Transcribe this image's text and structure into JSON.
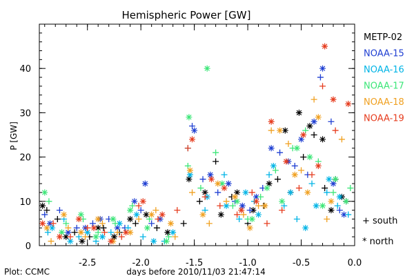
{
  "footer": {
    "credit": "Plot: CCMC"
  },
  "legend": {
    "items": [
      {
        "name": "METP-02",
        "color": "#000000"
      },
      {
        "name": "NOAA-15",
        "color": "#1f3fd2"
      },
      {
        "name": "NOAA-16",
        "color": "#00b4e6"
      },
      {
        "name": "NOAA-17",
        "color": "#3ce678"
      },
      {
        "name": "NOAA-18",
        "color": "#f0a020"
      },
      {
        "name": "NOAA-19",
        "color": "#e63c1e"
      }
    ],
    "markers": [
      {
        "symbol": "+",
        "label": "south"
      },
      {
        "symbol": "*",
        "label": "north"
      }
    ]
  },
  "chart_data": {
    "type": "scatter",
    "title": "Hemispheric Power [GW]",
    "xlabel": "days before 2010/11/03 21:47:14",
    "ylabel": "P [GW]",
    "xlim": [
      -2.95,
      0.0
    ],
    "ylim": [
      0,
      50
    ],
    "xticks": [
      -2.5,
      -2.0,
      -1.5,
      -1.0,
      -0.5,
      0.0
    ],
    "xtick_labels": [
      "-2.5",
      "-2.0",
      "-1.5",
      "-1.0",
      "-0.5",
      "0.0"
    ],
    "yticks": [
      0,
      10,
      20,
      30,
      40
    ],
    "ytick_labels": [
      "0",
      "10",
      "20",
      "30",
      "40"
    ],
    "series": [
      {
        "name": "METP-02",
        "color": "#000000",
        "south": [
          [
            -2.88,
            8
          ],
          [
            -2.78,
            6
          ],
          [
            -2.62,
            3
          ],
          [
            -2.48,
            2
          ],
          [
            -2.35,
            4
          ],
          [
            -2.2,
            3
          ],
          [
            -2.05,
            5
          ],
          [
            -1.85,
            4
          ],
          [
            -1.6,
            5
          ],
          [
            -1.45,
            10
          ],
          [
            -1.3,
            19
          ],
          [
            -1.15,
            11
          ],
          [
            -1.0,
            5
          ],
          [
            -0.85,
            9
          ],
          [
            -0.72,
            15
          ],
          [
            -0.6,
            12
          ],
          [
            -0.48,
            20
          ],
          [
            -0.38,
            25
          ],
          [
            -0.28,
            13
          ],
          [
            -0.18,
            15
          ],
          [
            -0.08,
            10
          ]
        ],
        "north": [
          [
            -2.92,
            9
          ],
          [
            -2.7,
            2
          ],
          [
            -2.55,
            1
          ],
          [
            -2.4,
            4
          ],
          [
            -2.25,
            2
          ],
          [
            -2.1,
            6
          ],
          [
            -1.95,
            7
          ],
          [
            -1.75,
            3
          ],
          [
            -1.55,
            15
          ],
          [
            -1.4,
            12
          ],
          [
            -1.25,
            7
          ],
          [
            -1.1,
            12
          ],
          [
            -0.95,
            8
          ],
          [
            -0.8,
            14
          ],
          [
            -0.65,
            26
          ],
          [
            -0.52,
            30
          ],
          [
            -0.42,
            27
          ],
          [
            -0.3,
            24
          ],
          [
            -0.22,
            8
          ],
          [
            -0.12,
            11
          ]
        ]
      },
      {
        "name": "NOAA-15",
        "color": "#1f3fd2",
        "south": [
          [
            -2.9,
            7
          ],
          [
            -2.76,
            8
          ],
          [
            -2.6,
            4
          ],
          [
            -2.45,
            5
          ],
          [
            -2.3,
            6
          ],
          [
            -2.15,
            4
          ],
          [
            -2.0,
            8
          ],
          [
            -1.9,
            5
          ],
          [
            -1.52,
            27
          ],
          [
            -1.42,
            15
          ],
          [
            -1.28,
            12
          ],
          [
            -1.12,
            10
          ],
          [
            -0.98,
            8
          ],
          [
            -0.86,
            13
          ],
          [
            -0.7,
            21
          ],
          [
            -0.56,
            18
          ],
          [
            -0.44,
            16
          ],
          [
            -0.32,
            38
          ],
          [
            -0.22,
            28
          ],
          [
            -0.14,
            8
          ]
        ],
        "north": [
          [
            -2.85,
            5
          ],
          [
            -2.68,
            3
          ],
          [
            -2.52,
            4
          ],
          [
            -2.38,
            6
          ],
          [
            -2.22,
            4
          ],
          [
            -2.06,
            10
          ],
          [
            -1.96,
            14
          ],
          [
            -1.82,
            6
          ],
          [
            -1.5,
            26
          ],
          [
            -1.35,
            16
          ],
          [
            -1.18,
            14
          ],
          [
            -1.05,
            9
          ],
          [
            -0.92,
            11
          ],
          [
            -0.78,
            22
          ],
          [
            -0.62,
            19
          ],
          [
            -0.5,
            24
          ],
          [
            -0.38,
            28
          ],
          [
            -0.3,
            40
          ],
          [
            -0.2,
            14
          ],
          [
            -0.1,
            7
          ]
        ]
      },
      {
        "name": "NOAA-16",
        "color": "#00b4e6",
        "south": [
          [
            -2.87,
            3
          ],
          [
            -2.72,
            6
          ],
          [
            -2.58,
            2
          ],
          [
            -2.42,
            1
          ],
          [
            -2.28,
            3
          ],
          [
            -2.12,
            4
          ],
          [
            -1.98,
            2
          ],
          [
            -1.78,
            1
          ],
          [
            -1.56,
            22
          ],
          [
            -1.4,
            8
          ],
          [
            -1.22,
            16
          ],
          [
            -1.08,
            6
          ],
          [
            -0.94,
            10
          ],
          [
            -0.8,
            16
          ],
          [
            -0.66,
            9
          ],
          [
            -0.54,
            6
          ],
          [
            -0.4,
            14
          ],
          [
            -0.26,
            12
          ],
          [
            -0.16,
            9
          ],
          [
            -0.06,
            7
          ]
        ],
        "north": [
          [
            -2.83,
            4
          ],
          [
            -2.66,
            1
          ],
          [
            -2.5,
            3
          ],
          [
            -2.36,
            2
          ],
          [
            -2.2,
            5
          ],
          [
            -2.04,
            7
          ],
          [
            -1.88,
            1
          ],
          [
            -1.7,
            3
          ],
          [
            -1.54,
            16
          ],
          [
            -1.38,
            11
          ],
          [
            -1.2,
            9
          ],
          [
            -1.02,
            12
          ],
          [
            -0.9,
            7
          ],
          [
            -0.76,
            18
          ],
          [
            -0.6,
            12
          ],
          [
            -0.46,
            4
          ],
          [
            -0.36,
            9
          ],
          [
            -0.24,
            15
          ],
          [
            -0.14,
            11
          ]
        ]
      },
      {
        "name": "NOAA-17",
        "color": "#3ce678",
        "south": [
          [
            -2.86,
            10
          ],
          [
            -2.7,
            5
          ],
          [
            -2.54,
            6
          ],
          [
            -2.4,
            3
          ],
          [
            -2.24,
            5
          ],
          [
            -2.08,
            9
          ],
          [
            -1.92,
            6
          ],
          [
            -1.74,
            2
          ],
          [
            -1.56,
            18
          ],
          [
            -1.44,
            13
          ],
          [
            -1.3,
            21
          ],
          [
            -1.14,
            9
          ],
          [
            -1.0,
            6
          ],
          [
            -0.88,
            11
          ],
          [
            -0.74,
            17
          ],
          [
            -0.58,
            22
          ],
          [
            -0.46,
            26
          ],
          [
            -0.34,
            19
          ],
          [
            -0.2,
            12
          ],
          [
            -0.04,
            13
          ]
        ],
        "north": [
          [
            -2.9,
            12
          ],
          [
            -2.74,
            3
          ],
          [
            -2.56,
            7
          ],
          [
            -2.42,
            2
          ],
          [
            -2.26,
            6
          ],
          [
            -2.1,
            8
          ],
          [
            -1.94,
            4
          ],
          [
            -1.76,
            1
          ],
          [
            -1.55,
            29
          ],
          [
            -1.38,
            40
          ],
          [
            -1.24,
            14
          ],
          [
            -1.1,
            10
          ],
          [
            -0.96,
            6
          ],
          [
            -0.82,
            13
          ],
          [
            -0.68,
            10
          ],
          [
            -0.54,
            22
          ],
          [
            -0.42,
            20
          ],
          [
            -0.3,
            9
          ],
          [
            -0.18,
            15
          ],
          [
            -0.08,
            10
          ]
        ]
      },
      {
        "name": "NOAA-18",
        "color": "#f0a020",
        "south": [
          [
            -2.84,
            1
          ],
          [
            -2.68,
            4
          ],
          [
            -2.52,
            2
          ],
          [
            -2.36,
            5
          ],
          [
            -2.22,
            3
          ],
          [
            -2.02,
            6
          ],
          [
            -1.86,
            8
          ],
          [
            -1.68,
            2
          ],
          [
            -1.52,
            12
          ],
          [
            -1.36,
            5
          ],
          [
            -1.2,
            10
          ],
          [
            -1.04,
            7
          ],
          [
            -0.9,
            9
          ],
          [
            -0.78,
            26
          ],
          [
            -0.62,
            23
          ],
          [
            -0.5,
            17
          ],
          [
            -0.38,
            33
          ],
          [
            -0.26,
            6
          ],
          [
            -0.12,
            24
          ]
        ],
        "north": [
          [
            -2.88,
            4
          ],
          [
            -2.72,
            7
          ],
          [
            -2.56,
            3
          ],
          [
            -2.4,
            6
          ],
          [
            -2.26,
            1
          ],
          [
            -2.1,
            3
          ],
          [
            -1.9,
            7
          ],
          [
            -1.72,
            5
          ],
          [
            -1.54,
            17
          ],
          [
            -1.42,
            7
          ],
          [
            -1.28,
            14
          ],
          [
            -1.12,
            11
          ],
          [
            -0.98,
            4
          ],
          [
            -0.84,
            9
          ],
          [
            -0.7,
            26
          ],
          [
            -0.56,
            16
          ],
          [
            -0.44,
            12
          ],
          [
            -0.34,
            29
          ],
          [
            -0.22,
            10
          ]
        ]
      },
      {
        "name": "NOAA-19",
        "color": "#e63c1e",
        "south": [
          [
            -2.82,
            5
          ],
          [
            -2.66,
            2
          ],
          [
            -2.5,
            4
          ],
          [
            -2.34,
            3
          ],
          [
            -2.18,
            2
          ],
          [
            -2.02,
            9
          ],
          [
            -1.84,
            6
          ],
          [
            -1.66,
            8
          ],
          [
            -1.56,
            22
          ],
          [
            -1.4,
            11
          ],
          [
            -1.26,
            9
          ],
          [
            -1.1,
            7
          ],
          [
            -0.96,
            12
          ],
          [
            -0.82,
            5
          ],
          [
            -0.68,
            8
          ],
          [
            -0.52,
            13
          ],
          [
            -0.4,
            16
          ],
          [
            -0.3,
            36
          ],
          [
            -0.18,
            26
          ]
        ],
        "north": [
          [
            -2.92,
            5
          ],
          [
            -2.76,
            2
          ],
          [
            -2.58,
            6
          ],
          [
            -2.44,
            4
          ],
          [
            -2.28,
            1
          ],
          [
            -2.14,
            3
          ],
          [
            -1.98,
            10
          ],
          [
            -1.8,
            7
          ],
          [
            -1.52,
            24
          ],
          [
            -1.34,
            15
          ],
          [
            -1.22,
            13
          ],
          [
            -1.06,
            8
          ],
          [
            -0.92,
            10
          ],
          [
            -0.78,
            28
          ],
          [
            -0.64,
            19
          ],
          [
            -0.48,
            25
          ],
          [
            -0.34,
            18
          ],
          [
            -0.28,
            45
          ],
          [
            -0.2,
            33
          ],
          [
            -0.06,
            32
          ]
        ]
      }
    ]
  }
}
